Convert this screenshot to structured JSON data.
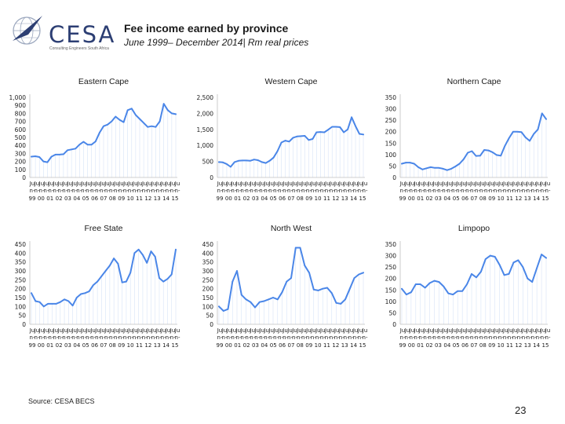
{
  "header": {
    "logo_text": "CESA",
    "logo_tagline": "Consulting Engineers South Africa",
    "title": "Fee income earned by province",
    "subtitle": "June 1999– December 2014| Rm real prices"
  },
  "footer": {
    "source": "Source: CESA BECS",
    "page_number": "23"
  },
  "colors": {
    "line": "#4a86e8",
    "axis": "#bfbfbf",
    "text": "#1a1a1a"
  },
  "x_tick_labels": {
    "top": [
      "Ju",
      "Ju",
      "Ju",
      "Ju",
      "Ju",
      "Ju",
      "Ju",
      "Ju",
      "Ju",
      "Ju",
      "Ju",
      "Ju",
      "Ju",
      "Ju",
      "Ju",
      "Ju",
      "Ju",
      "Ju",
      "Ju",
      "Ju",
      "Ju",
      "Ju",
      "Ju",
      "Ju",
      "Ju",
      "Ju",
      "Ju",
      "Ju",
      "Ju",
      "Ju",
      "Ju",
      "Ju"
    ],
    "middle": [
      "n-",
      "n-",
      "n-",
      "n-",
      "n-",
      "n-",
      "n-",
      "n-",
      "n-",
      "n-",
      "n-",
      "n-",
      "n-",
      "n-",
      "n-",
      "n-",
      "n-",
      "n-",
      "n-",
      "n-",
      "n-",
      "n-",
      "n-",
      "n-",
      "n-",
      "n-",
      "n-",
      "n-",
      "n-",
      "n-",
      "n-",
      "n-"
    ],
    "bottom": [
      "99",
      "00",
      "01",
      "02",
      "03",
      "04",
      "05",
      "06",
      "07",
      "08",
      "09",
      "10",
      "11",
      "12",
      "13",
      "14",
      "15"
    ]
  },
  "chart_data": [
    {
      "type": "line",
      "title": "Eastern Cape",
      "xlabel": "",
      "ylabel": "",
      "ylim": [
        0,
        1000
      ],
      "yticks": [
        "0",
        "100",
        "200",
        "300",
        "400",
        "500",
        "600",
        "700",
        "800",
        "900",
        "1,000"
      ],
      "values": [
        260,
        265,
        255,
        200,
        190,
        260,
        285,
        285,
        290,
        340,
        350,
        360,
        410,
        445,
        410,
        410,
        450,
        560,
        640,
        660,
        700,
        760,
        720,
        690,
        840,
        860,
        780,
        730,
        680,
        630,
        640,
        630,
        700,
        920,
        840,
        800,
        790
      ]
    },
    {
      "type": "line",
      "title": "Western Cape",
      "xlabel": "",
      "ylabel": "",
      "ylim": [
        0,
        2500
      ],
      "yticks": [
        "0",
        "500",
        "1,000",
        "1,500",
        "2,000",
        "2,500"
      ],
      "values": [
        480,
        470,
        420,
        330,
        480,
        520,
        530,
        530,
        520,
        560,
        540,
        480,
        450,
        520,
        620,
        820,
        1090,
        1150,
        1120,
        1240,
        1280,
        1290,
        1300,
        1170,
        1200,
        1410,
        1420,
        1410,
        1490,
        1580,
        1580,
        1570,
        1410,
        1500,
        1880,
        1600,
        1360,
        1340
      ]
    },
    {
      "type": "line",
      "title": "Northern Cape",
      "xlabel": "",
      "ylabel": "",
      "ylim": [
        0,
        350
      ],
      "yticks": [
        "0",
        "50",
        "100",
        "150",
        "200",
        "250",
        "300",
        "350"
      ],
      "values": [
        60,
        65,
        65,
        60,
        45,
        35,
        40,
        45,
        42,
        42,
        38,
        32,
        38,
        48,
        60,
        80,
        108,
        115,
        94,
        95,
        120,
        118,
        110,
        98,
        95,
        138,
        172,
        200,
        200,
        198,
        175,
        160,
        190,
        210,
        280,
        255
      ]
    },
    {
      "type": "line",
      "title": "Free State",
      "xlabel": "",
      "ylabel": "",
      "ylim": [
        0,
        450
      ],
      "yticks": [
        "0",
        "50",
        "100",
        "150",
        "200",
        "250",
        "300",
        "350",
        "400",
        "450"
      ],
      "values": [
        175,
        130,
        125,
        100,
        115,
        115,
        115,
        125,
        140,
        130,
        105,
        150,
        170,
        175,
        185,
        220,
        240,
        270,
        300,
        330,
        370,
        340,
        235,
        240,
        290,
        400,
        420,
        390,
        345,
        410,
        380,
        260,
        240,
        255,
        280,
        420
      ]
    },
    {
      "type": "line",
      "title": "North West",
      "xlabel": "",
      "ylabel": "",
      "ylim": [
        0,
        450
      ],
      "yticks": [
        "0",
        "50",
        "100",
        "150",
        "200",
        "250",
        "300",
        "350",
        "400",
        "450"
      ],
      "values": [
        100,
        75,
        85,
        240,
        300,
        165,
        140,
        125,
        95,
        125,
        130,
        140,
        150,
        140,
        180,
        240,
        260,
        430,
        430,
        330,
        290,
        195,
        190,
        200,
        205,
        175,
        120,
        115,
        140,
        200,
        260,
        280,
        290
      ]
    },
    {
      "type": "line",
      "title": "Limpopo",
      "xlabel": "",
      "ylabel": "",
      "ylim": [
        0,
        350
      ],
      "yticks": [
        "0",
        "50",
        "100",
        "150",
        "200",
        "250",
        "300",
        "350"
      ],
      "values": [
        155,
        130,
        140,
        175,
        175,
        160,
        180,
        190,
        185,
        165,
        135,
        130,
        145,
        145,
        175,
        220,
        205,
        230,
        285,
        300,
        295,
        260,
        215,
        220,
        270,
        280,
        250,
        200,
        185,
        245,
        305,
        290
      ]
    }
  ]
}
